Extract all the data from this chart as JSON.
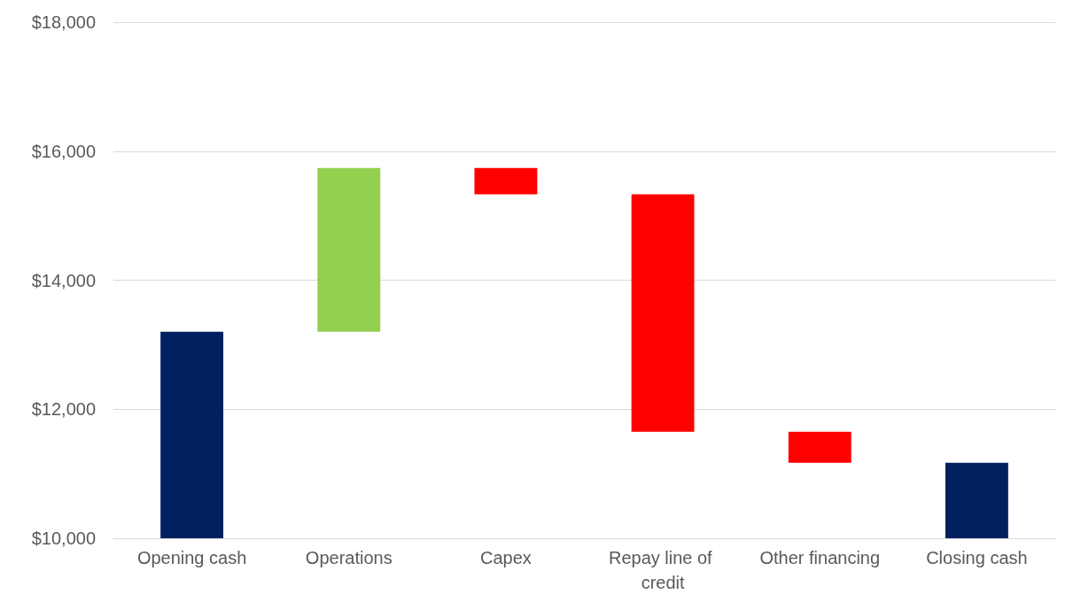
{
  "chart_data": {
    "type": "bar",
    "categories": [
      "Opening cash",
      "Operations",
      "Capex",
      "Repay line of credit",
      "Other financing",
      "Closing cash"
    ],
    "values": [
      13200,
      2540,
      -410,
      -3680,
      -480,
      11170
    ],
    "base": [
      null,
      13200,
      15740,
      15330,
      11650,
      null
    ],
    "colors": [
      "#002060",
      "#92d050",
      "#ff0000",
      "#ff0000",
      "#ff0000",
      "#002060"
    ],
    "ylim": [
      10000,
      18000
    ],
    "yticks": [
      {
        "value": 10000,
        "label": "$10,000"
      },
      {
        "value": 12000,
        "label": "$12,000"
      },
      {
        "value": 14000,
        "label": "$14,000"
      },
      {
        "value": 16000,
        "label": "$16,000"
      },
      {
        "value": 18000,
        "label": "$18,000"
      }
    ],
    "grid": "y"
  }
}
